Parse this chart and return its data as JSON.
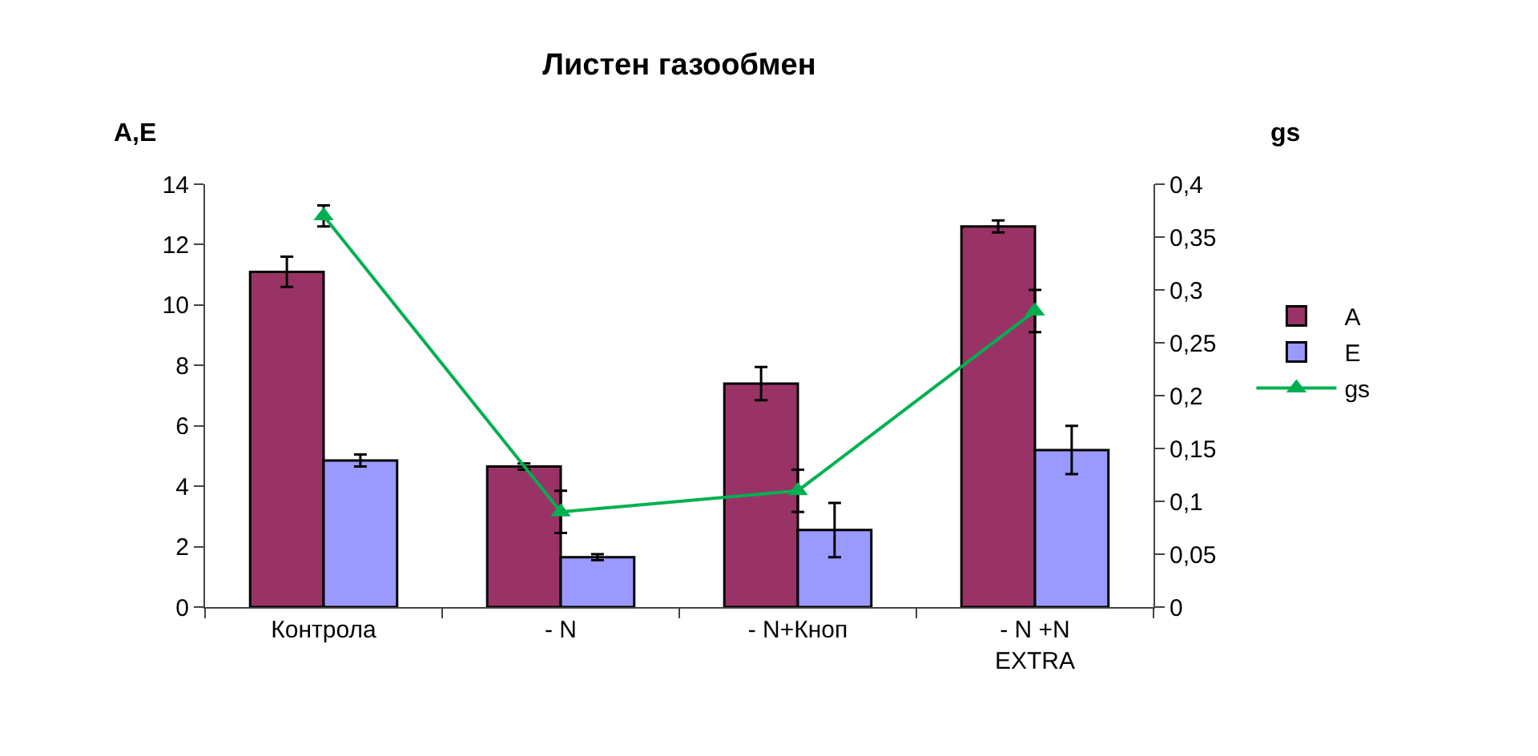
{
  "chart_data": {
    "type": "bar",
    "title": "Листен газообмен",
    "ylabel": "A,E",
    "y2label": "gs",
    "categories": [
      "Контрола",
      "- N",
      "- N+Кноп",
      "- N +N\nEXTRA"
    ],
    "series": [
      {
        "name": "A",
        "color": "#993366",
        "values": [
          11.1,
          4.65,
          7.4,
          12.6
        ],
        "errors": [
          0.5,
          0.1,
          0.55,
          0.2
        ]
      },
      {
        "name": "E",
        "color": "#9999ff",
        "values": [
          4.85,
          1.65,
          2.55,
          5.2
        ],
        "errors": [
          0.2,
          0.1,
          0.9,
          0.8
        ]
      },
      {
        "name": "gs",
        "type": "line",
        "axis": "y2",
        "color": "#00b050",
        "marker": "triangle",
        "values": [
          0.37,
          0.09,
          0.11,
          0.28
        ],
        "errors": [
          0.01,
          0.02,
          0.02,
          0.02
        ]
      }
    ],
    "ylim": [
      0,
      14
    ],
    "yticks": [
      0,
      2,
      4,
      6,
      8,
      10,
      12,
      14
    ],
    "y2lim": [
      0,
      0.4
    ],
    "y2ticks": [
      {
        "value": 0,
        "label": "0"
      },
      {
        "value": 0.05,
        "label": "0,05"
      },
      {
        "value": 0.1,
        "label": "0,1"
      },
      {
        "value": 0.15,
        "label": "0,15"
      },
      {
        "value": 0.2,
        "label": "0,2"
      },
      {
        "value": 0.25,
        "label": "0,25"
      },
      {
        "value": 0.3,
        "label": "0,3"
      },
      {
        "value": 0.35,
        "label": "0,35"
      },
      {
        "value": 0.4,
        "label": "0,4"
      }
    ],
    "legend": "right"
  }
}
